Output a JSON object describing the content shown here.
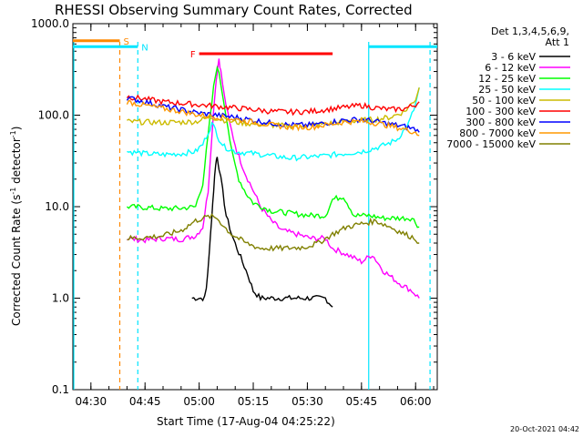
{
  "chart_data": {
    "type": "line",
    "title": "RHESSI Observing Summary Count Rates, Corrected",
    "xlabel": "Start Time (17-Aug-04 04:25:22)",
    "ylabel_main": "Corrected Count Rate (s",
    "ylabel_sup1": "-1",
    "ylabel_mid": " detector",
    "ylabel_sup2": "-1",
    "ylabel_end": ")",
    "y_scale": "log",
    "ylim": [
      0.1,
      1000
    ],
    "xlim_minutes": [
      0,
      101
    ],
    "x_ticks": [
      {
        "label": "04:30",
        "minute": 5
      },
      {
        "label": "04:45",
        "minute": 20
      },
      {
        "label": "05:00",
        "minute": 35
      },
      {
        "label": "05:15",
        "minute": 50
      },
      {
        "label": "05:30",
        "minute": 65
      },
      {
        "label": "05:45",
        "minute": 80
      },
      {
        "label": "06:00",
        "minute": 95
      }
    ],
    "y_ticks": [
      {
        "label": "1000.0",
        "value": 1000
      },
      {
        "label": "100.0",
        "value": 100
      },
      {
        "label": "10.0",
        "value": 10
      },
      {
        "label": "1.0",
        "value": 1
      },
      {
        "label": "0.1",
        "value": 0.1
      }
    ],
    "legend_header_1": "Det 1,3,4,5,6,9,",
    "legend_header_2": "Att 1",
    "legend_position": "right",
    "stamp": "20-Oct-2021 04:42",
    "series": [
      {
        "name": "3 - 6 keV",
        "color": "#000000",
        "points": [
          [
            33,
            1
          ],
          [
            36.5,
            1
          ],
          [
            37,
            1.3
          ],
          [
            37.8,
            3
          ],
          [
            38.5,
            8
          ],
          [
            39,
            15
          ],
          [
            39.6,
            30
          ],
          [
            40,
            35
          ],
          [
            40.5,
            27
          ],
          [
            41.5,
            15
          ],
          [
            42.5,
            8
          ],
          [
            44,
            5
          ],
          [
            45.5,
            3.5
          ],
          [
            47,
            2.5
          ],
          [
            48.5,
            1.8
          ],
          [
            50,
            1.2
          ],
          [
            52,
            1
          ],
          [
            58,
            1
          ],
          [
            62,
            1
          ],
          [
            66,
            1
          ],
          [
            70,
            1
          ],
          [
            72,
            0.8
          ]
        ]
      },
      {
        "name": "6 - 12 keV",
        "color": "#ff00ff",
        "points": [
          [
            15,
            4.5
          ],
          [
            20,
            4.3
          ],
          [
            25,
            4.5
          ],
          [
            30,
            4.4
          ],
          [
            34,
            4.8
          ],
          [
            36,
            6
          ],
          [
            37.5,
            15
          ],
          [
            38.5,
            60
          ],
          [
            39.5,
            200
          ],
          [
            40,
            300
          ],
          [
            40.5,
            420
          ],
          [
            41,
            300
          ],
          [
            42,
            160
          ],
          [
            43.5,
            80
          ],
          [
            45.5,
            40
          ],
          [
            48,
            22
          ],
          [
            50,
            15
          ],
          [
            52,
            10
          ],
          [
            55,
            7
          ],
          [
            58,
            5.5
          ],
          [
            62,
            5
          ],
          [
            66,
            4.5
          ],
          [
            70,
            4.5
          ],
          [
            72,
            3.5
          ],
          [
            76,
            3
          ],
          [
            80,
            2.5
          ],
          [
            83,
            3
          ],
          [
            86,
            2
          ],
          [
            90,
            1.5
          ],
          [
            94,
            1.2
          ],
          [
            96,
            1
          ]
        ]
      },
      {
        "name": "12 - 25 keV",
        "color": "#00ff00",
        "points": [
          [
            15,
            10
          ],
          [
            20,
            9.8
          ],
          [
            25,
            9.5
          ],
          [
            30,
            9.6
          ],
          [
            34,
            10
          ],
          [
            36,
            18
          ],
          [
            37.5,
            60
          ],
          [
            39,
            200
          ],
          [
            40,
            350
          ],
          [
            41,
            220
          ],
          [
            42.5,
            100
          ],
          [
            44,
            40
          ],
          [
            46,
            20
          ],
          [
            48,
            14
          ],
          [
            50,
            11
          ],
          [
            55,
            9
          ],
          [
            60,
            8.5
          ],
          [
            66,
            8
          ],
          [
            70,
            8
          ],
          [
            72,
            12
          ],
          [
            75,
            13
          ],
          [
            78,
            8
          ],
          [
            82,
            8
          ],
          [
            86,
            7.5
          ],
          [
            90,
            7.5
          ],
          [
            94,
            7.5
          ],
          [
            96,
            6
          ]
        ]
      },
      {
        "name": "25 - 50 keV",
        "color": "#00ffff",
        "points": [
          [
            15,
            40
          ],
          [
            20,
            38
          ],
          [
            25,
            37
          ],
          [
            30,
            38
          ],
          [
            34,
            40
          ],
          [
            36,
            48
          ],
          [
            37.5,
            65
          ],
          [
            38.5,
            80
          ],
          [
            39.5,
            70
          ],
          [
            40.5,
            55
          ],
          [
            42,
            45
          ],
          [
            45,
            40
          ],
          [
            50,
            38
          ],
          [
            55,
            36
          ],
          [
            60,
            34
          ],
          [
            66,
            35
          ],
          [
            70,
            36
          ],
          [
            75,
            38
          ],
          [
            80,
            40
          ],
          [
            85,
            45
          ],
          [
            88,
            50
          ],
          [
            90,
            55
          ],
          [
            93,
            80
          ],
          [
            95,
            130
          ],
          [
            96,
            200
          ]
        ]
      },
      {
        "name": "50 - 100 keV",
        "color": "#ccbb00",
        "points": [
          [
            15,
            85
          ],
          [
            20,
            84
          ],
          [
            25,
            83
          ],
          [
            30,
            84
          ],
          [
            34,
            85
          ],
          [
            36,
            90
          ],
          [
            38,
            95
          ],
          [
            40,
            92
          ],
          [
            44,
            85
          ],
          [
            50,
            80
          ],
          [
            55,
            78
          ],
          [
            60,
            76
          ],
          [
            66,
            78
          ],
          [
            70,
            80
          ],
          [
            75,
            85
          ],
          [
            80,
            88
          ],
          [
            84,
            90
          ],
          [
            88,
            95
          ],
          [
            92,
            110
          ],
          [
            95,
            150
          ],
          [
            96,
            200
          ]
        ]
      },
      {
        "name": "100 - 300 keV",
        "color": "#ff0000",
        "points": [
          [
            15,
            160
          ],
          [
            20,
            150
          ],
          [
            25,
            140
          ],
          [
            30,
            135
          ],
          [
            35,
            130
          ],
          [
            40,
            125
          ],
          [
            45,
            120
          ],
          [
            50,
            115
          ],
          [
            55,
            110
          ],
          [
            60,
            108
          ],
          [
            66,
            110
          ],
          [
            70,
            115
          ],
          [
            74,
            120
          ],
          [
            78,
            125
          ],
          [
            80,
            128
          ],
          [
            84,
            120
          ],
          [
            88,
            115
          ],
          [
            92,
            118
          ],
          [
            95,
            130
          ],
          [
            96,
            140
          ]
        ]
      },
      {
        "name": "300 - 800 keV",
        "color": "#0000ff",
        "points": [
          [
            15,
            155
          ],
          [
            20,
            140
          ],
          [
            25,
            125
          ],
          [
            30,
            115
          ],
          [
            35,
            105
          ],
          [
            40,
            100
          ],
          [
            45,
            95
          ],
          [
            50,
            88
          ],
          [
            55,
            82
          ],
          [
            60,
            78
          ],
          [
            66,
            78
          ],
          [
            70,
            82
          ],
          [
            75,
            88
          ],
          [
            80,
            90
          ],
          [
            84,
            85
          ],
          [
            88,
            80
          ],
          [
            92,
            75
          ],
          [
            95,
            70
          ],
          [
            96,
            65
          ]
        ]
      },
      {
        "name": "800 - 7000 keV",
        "color": "#ff9900",
        "points": [
          [
            15,
            140
          ],
          [
            20,
            128
          ],
          [
            25,
            118
          ],
          [
            30,
            110
          ],
          [
            35,
            100
          ],
          [
            40,
            96
          ],
          [
            45,
            90
          ],
          [
            50,
            84
          ],
          [
            55,
            78
          ],
          [
            60,
            74
          ],
          [
            66,
            74
          ],
          [
            70,
            78
          ],
          [
            75,
            84
          ],
          [
            80,
            86
          ],
          [
            84,
            82
          ],
          [
            88,
            76
          ],
          [
            92,
            70
          ],
          [
            95,
            65
          ],
          [
            96,
            60
          ]
        ]
      },
      {
        "name": "7000 - 15000 keV",
        "color": "#808000",
        "points": [
          [
            15,
            4.5
          ],
          [
            20,
            4.6
          ],
          [
            25,
            4.8
          ],
          [
            30,
            5.5
          ],
          [
            34,
            7
          ],
          [
            36,
            7.5
          ],
          [
            38,
            7.8
          ],
          [
            40,
            7.5
          ],
          [
            42,
            6
          ],
          [
            44,
            5
          ],
          [
            48,
            4
          ],
          [
            52,
            3.5
          ],
          [
            58,
            3.5
          ],
          [
            64,
            3.6
          ],
          [
            68,
            4
          ],
          [
            72,
            5
          ],
          [
            76,
            6
          ],
          [
            80,
            6.5
          ],
          [
            84,
            7
          ],
          [
            88,
            6
          ],
          [
            92,
            5
          ],
          [
            95,
            4.5
          ],
          [
            96,
            4
          ]
        ]
      }
    ],
    "state_bars": [
      {
        "label": "S",
        "color": "#ff8800",
        "x0": 0,
        "x1": 13,
        "value": 650
      },
      {
        "label": "N",
        "color": "#00e5ff",
        "x0": 0,
        "x1": 18,
        "value": 560
      },
      {
        "label": "N",
        "color": "#00e5ff",
        "x0": 82,
        "x1": 101,
        "value": 560
      },
      {
        "label": "F",
        "color": "#ff0000",
        "x0": 35,
        "x1": 72,
        "value": 470
      }
    ],
    "vertical_markers": [
      {
        "color": "#ff8800",
        "x": 13,
        "style": "dashed"
      },
      {
        "color": "#00e5ff",
        "x": 18,
        "style": "dashed"
      },
      {
        "color": "#00e5ff",
        "x": 82,
        "style": "solid"
      },
      {
        "color": "#00e5ff",
        "x": 99,
        "style": "dashed"
      },
      {
        "color": "#00e5ff",
        "x": 0,
        "style": "solid"
      }
    ]
  }
}
